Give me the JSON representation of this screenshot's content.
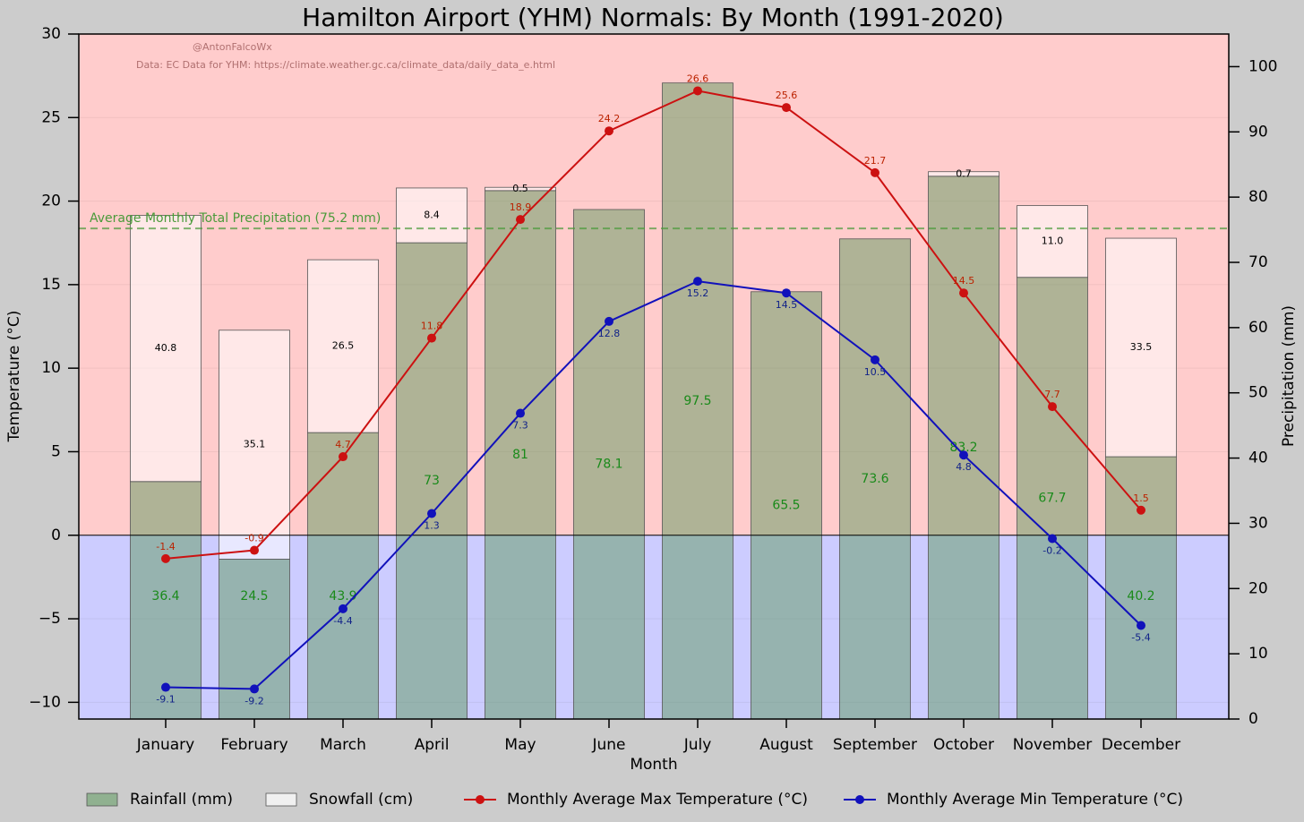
{
  "chart_data": {
    "type": "combo",
    "title": "Hamilton Airport (YHM) Normals: By Month (1991-2020)",
    "credits": [
      "@AntonFalcoWx",
      "Data: EC Data for YHM: https://climate.weather.gc.ca/climate_data/daily_data_e.html"
    ],
    "x_label": "Month",
    "y_label": "Temperature (°C)",
    "y2_label": "Precipitation (mm)",
    "categories": [
      "January",
      "February",
      "March",
      "April",
      "May",
      "June",
      "July",
      "August",
      "September",
      "October",
      "November",
      "December"
    ],
    "series": [
      {
        "name": "Rainfall (mm)",
        "kind": "bar",
        "axis": "y2",
        "color": "#5f9a5f",
        "label_color": "#1a8a1a",
        "values": [
          36.4,
          24.5,
          43.9,
          73,
          81,
          78.1,
          97.5,
          65.5,
          73.6,
          83.2,
          67.7,
          40.2
        ]
      },
      {
        "name": "Snowfall (cm)",
        "kind": "bar",
        "axis": "y2",
        "color": "#ffffff",
        "label_color": "#000000",
        "values": [
          40.8,
          35.1,
          26.5,
          8.4,
          0.5,
          0,
          0,
          0,
          0,
          0.7,
          11.0,
          33.5
        ],
        "value_labels": [
          "40.8",
          "35.1",
          "26.5",
          "8.4",
          "0.5",
          null,
          null,
          null,
          null,
          "0.7",
          "11.0",
          "33.5"
        ]
      },
      {
        "name": "Monthly Average Max Temperature (°C)",
        "kind": "line",
        "axis": "y",
        "color": "#cc1111",
        "label_color": "#bb2200",
        "label_side": "above",
        "values": [
          -1.4,
          -0.9,
          4.7,
          11.8,
          18.9,
          24.2,
          26.6,
          25.6,
          21.7,
          14.5,
          7.7,
          1.5
        ]
      },
      {
        "name": "Monthly Average Min Temperature (°C)",
        "kind": "line",
        "axis": "y",
        "color": "#1111bb",
        "label_color": "#112288",
        "label_side": "below",
        "values": [
          -9.1,
          -9.2,
          -4.4,
          1.3,
          7.3,
          12.8,
          15.2,
          14.5,
          10.5,
          4.8,
          -0.2,
          -5.4
        ]
      }
    ],
    "reference_line": {
      "value": 75.2,
      "axis": "y2",
      "color": "#4a9a3a",
      "label": "Average Monthly Total Precipitation (75.2 mm)"
    },
    "background": {
      "above_zero": "#ffcccc",
      "below_zero": "#ccccff"
    },
    "ylim": [
      -11,
      30
    ],
    "yticks": [
      {
        "value": -10,
        "label": "−10"
      },
      {
        "value": -5,
        "label": "−5"
      },
      0,
      5,
      10,
      15,
      20,
      25,
      30
    ],
    "y2lim": [
      0,
      105
    ],
    "y2ticks": [
      0,
      10,
      20,
      30,
      40,
      50,
      60,
      70,
      80,
      90,
      100
    ],
    "grid": true
  }
}
